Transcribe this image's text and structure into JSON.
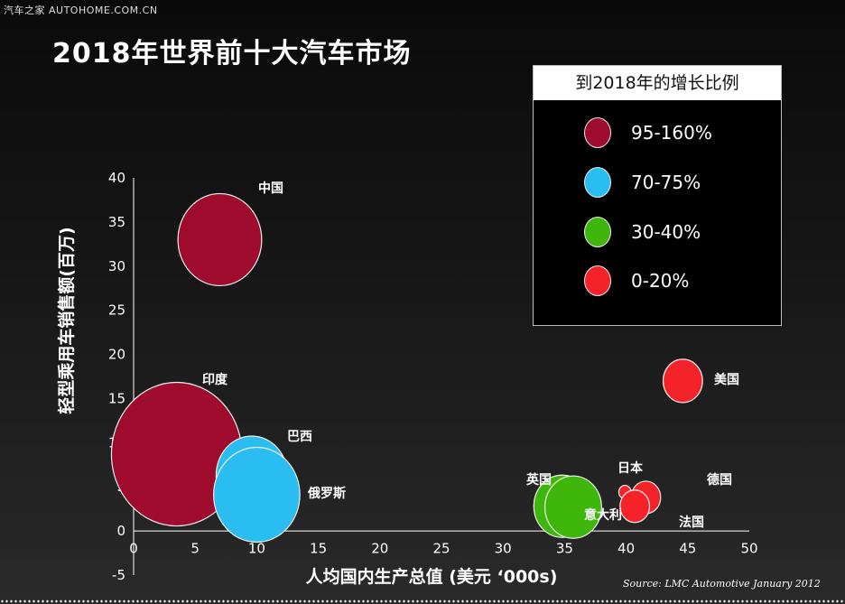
{
  "watermark": "汽车之家  AUTOHOME.COM.CN",
  "legend": {
    "title": "到2018年的增长比例",
    "items": [
      {
        "label": "95-160%",
        "color": "#9e0b2c"
      },
      {
        "label": "70-75%",
        "color": "#29bdf2"
      },
      {
        "label": "30-40%",
        "color": "#3fb60c"
      },
      {
        "label": "0-20%",
        "color": "#f4232a"
      }
    ]
  },
  "source": "Source: LMC Automotive January 2012",
  "chart_data": {
    "type": "bubble",
    "title": "2018年世界前十大汽车市场",
    "xlabel": "人均国内生产总值 (美元 ‘000s)",
    "ylabel": "轻型乘用车销售额(百万)",
    "xlim": [
      0,
      50
    ],
    "ylim": [
      -5,
      40
    ],
    "xticks": [
      "0",
      "5",
      "10",
      "15",
      "20",
      "25",
      "30",
      "35",
      "40",
      "45",
      "50"
    ],
    "yticks": [
      "-5",
      "0",
      "5",
      "10",
      "15",
      "20",
      "25",
      "30",
      "35",
      "40"
    ],
    "grid": false,
    "legend_position": "top-right",
    "points": [
      {
        "name": "中国",
        "x": 7,
        "y": 33,
        "size": 3.4,
        "group": "95-160%",
        "color": "#9e0b2c"
      },
      {
        "name": "印度",
        "x": 3.5,
        "y": 8.7,
        "size": 5.3,
        "group": "95-160%",
        "color": "#9e0b2c"
      },
      {
        "name": "巴西",
        "x": 9.6,
        "y": 6.3,
        "size": 2.9,
        "group": "70-75%",
        "color": "#29bdf2"
      },
      {
        "name": "俄罗斯",
        "x": 10,
        "y": 4.1,
        "size": 3.5,
        "group": "70-75%",
        "color": "#29bdf2"
      },
      {
        "name": "英国",
        "x": 34.8,
        "y": 2.8,
        "size": 2.3,
        "group": "30-40%",
        "color": "#3fb60c"
      },
      {
        "name": "意大利",
        "x": 35.7,
        "y": 2.7,
        "size": 2.3,
        "group": "30-40%",
        "color": "#3fb60c"
      },
      {
        "name": "美国",
        "x": 44.6,
        "y": 17,
        "size": 1.6,
        "group": "0-20%",
        "color": "#f4232a"
      },
      {
        "name": "日本",
        "x": 39.9,
        "y": 4.4,
        "size": 0.5,
        "group": "0-20%",
        "color": "#f4232a"
      },
      {
        "name": "德国",
        "x": 41.6,
        "y": 3.8,
        "size": 1.2,
        "group": "0-20%",
        "color": "#f4232a"
      },
      {
        "name": "法国",
        "x": 40.7,
        "y": 2.8,
        "size": 1.2,
        "group": "0-20%",
        "color": "#f4232a"
      }
    ]
  }
}
